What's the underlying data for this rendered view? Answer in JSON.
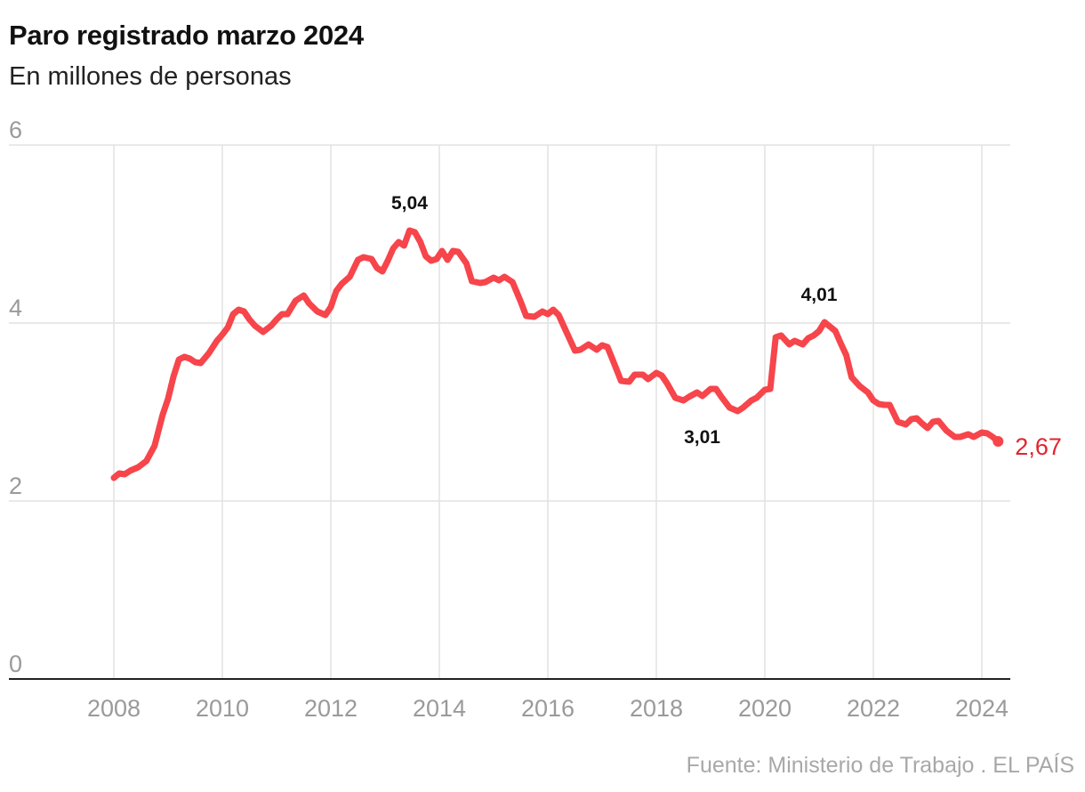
{
  "header": {
    "title": "Paro registrado marzo 2024",
    "subtitle": "En millones de personas"
  },
  "footer": {
    "source": "Fuente: Ministerio de Trabajo . EL PAÍS"
  },
  "colors": {
    "line": "#f6454b",
    "last_label": "#e3232f",
    "grid": "#e2e2e2",
    "tick": "#9a9a9a",
    "axis": "#222222"
  },
  "chart_data": {
    "type": "line",
    "title": "Paro registrado marzo 2024",
    "subtitle": "En millones de personas",
    "xlabel": "",
    "ylabel": "",
    "xlim": [
      2006.5,
      2024.8
    ],
    "ylim": [
      0,
      6
    ],
    "y_ticks": [
      0,
      2,
      4,
      6
    ],
    "y_tick_labels": [
      "0",
      "2",
      "4",
      "6"
    ],
    "x_ticks": [
      2008,
      2010,
      2012,
      2014,
      2016,
      2018,
      2020,
      2022,
      2024
    ],
    "x_tick_labels": [
      "2008",
      "2010",
      "2012",
      "2014",
      "2016",
      "2018",
      "2020",
      "2022",
      "2024"
    ],
    "grid": true,
    "series": [
      {
        "name": "Paro registrado",
        "x": [
          2008.0,
          2008.1,
          2008.2,
          2008.3,
          2008.45,
          2008.6,
          2008.75,
          2008.9,
          2009.0,
          2009.1,
          2009.2,
          2009.3,
          2009.4,
          2009.5,
          2009.6,
          2009.75,
          2009.9,
          2010.0,
          2010.1,
          2010.2,
          2010.3,
          2010.4,
          2010.5,
          2010.6,
          2010.75,
          2010.9,
          2011.0,
          2011.1,
          2011.2,
          2011.35,
          2011.5,
          2011.6,
          2011.75,
          2011.9,
          2012.0,
          2012.1,
          2012.2,
          2012.35,
          2012.5,
          2012.6,
          2012.75,
          2012.85,
          2012.95,
          2013.05,
          2013.15,
          2013.25,
          2013.35,
          2013.45,
          2013.55,
          2013.65,
          2013.75,
          2013.85,
          2013.95,
          2014.05,
          2014.15,
          2014.25,
          2014.35,
          2014.5,
          2014.6,
          2014.75,
          2014.85,
          2015.0,
          2015.1,
          2015.2,
          2015.35,
          2015.5,
          2015.6,
          2015.75,
          2015.9,
          2016.0,
          2016.1,
          2016.2,
          2016.35,
          2016.5,
          2016.6,
          2016.75,
          2016.9,
          2017.0,
          2017.1,
          2017.2,
          2017.35,
          2017.5,
          2017.6,
          2017.75,
          2017.85,
          2018.0,
          2018.1,
          2018.2,
          2018.35,
          2018.5,
          2018.6,
          2018.75,
          2018.85,
          2019.0,
          2019.1,
          2019.2,
          2019.35,
          2019.5,
          2019.6,
          2019.75,
          2019.85,
          2020.0,
          2020.1,
          2020.2,
          2020.3,
          2020.45,
          2020.55,
          2020.7,
          2020.8,
          2020.9,
          2021.0,
          2021.1,
          2021.2,
          2021.3,
          2021.4,
          2021.5,
          2021.6,
          2021.75,
          2021.9,
          2022.0,
          2022.1,
          2022.2,
          2022.3,
          2022.45,
          2022.6,
          2022.7,
          2022.8,
          2022.9,
          2023.0,
          2023.1,
          2023.2,
          2023.35,
          2023.5,
          2023.6,
          2023.75,
          2023.85,
          2024.0,
          2024.1,
          2024.2,
          2024.3
        ],
        "values": [
          2.26,
          2.31,
          2.3,
          2.34,
          2.38,
          2.45,
          2.62,
          2.97,
          3.15,
          3.4,
          3.59,
          3.62,
          3.6,
          3.56,
          3.55,
          3.66,
          3.8,
          3.87,
          3.95,
          4.1,
          4.15,
          4.13,
          4.04,
          3.97,
          3.9,
          3.97,
          4.04,
          4.1,
          4.1,
          4.25,
          4.31,
          4.22,
          4.13,
          4.09,
          4.18,
          4.36,
          4.44,
          4.52,
          4.71,
          4.74,
          4.72,
          4.62,
          4.58,
          4.7,
          4.84,
          4.91,
          4.87,
          5.04,
          5.02,
          4.91,
          4.75,
          4.7,
          4.72,
          4.81,
          4.71,
          4.81,
          4.8,
          4.67,
          4.47,
          4.45,
          4.46,
          4.51,
          4.48,
          4.52,
          4.46,
          4.24,
          4.08,
          4.07,
          4.13,
          4.1,
          4.15,
          4.09,
          3.89,
          3.69,
          3.7,
          3.76,
          3.7,
          3.75,
          3.73,
          3.58,
          3.35,
          3.34,
          3.42,
          3.42,
          3.37,
          3.44,
          3.41,
          3.32,
          3.16,
          3.13,
          3.17,
          3.22,
          3.18,
          3.26,
          3.26,
          3.17,
          3.05,
          3.01,
          3.05,
          3.13,
          3.16,
          3.25,
          3.26,
          3.84,
          3.86,
          3.76,
          3.8,
          3.76,
          3.83,
          3.86,
          3.91,
          4.01,
          3.96,
          3.91,
          3.77,
          3.64,
          3.39,
          3.29,
          3.22,
          3.13,
          3.09,
          3.08,
          3.08,
          2.89,
          2.86,
          2.92,
          2.93,
          2.87,
          2.82,
          2.89,
          2.9,
          2.79,
          2.72,
          2.72,
          2.75,
          2.72,
          2.77,
          2.76,
          2.72,
          2.67
        ]
      }
    ],
    "annotations": [
      {
        "label": "5,04",
        "x": 2013.45,
        "y": 5.04,
        "position": "above"
      },
      {
        "label": "4,01",
        "x": 2021.0,
        "y": 4.01,
        "position": "above"
      },
      {
        "label": "3,01",
        "x": 2019.5,
        "y": 3.01,
        "position": "below-left"
      }
    ],
    "last_value": {
      "label": "2,67",
      "x": 2024.3,
      "y": 2.67
    }
  }
}
